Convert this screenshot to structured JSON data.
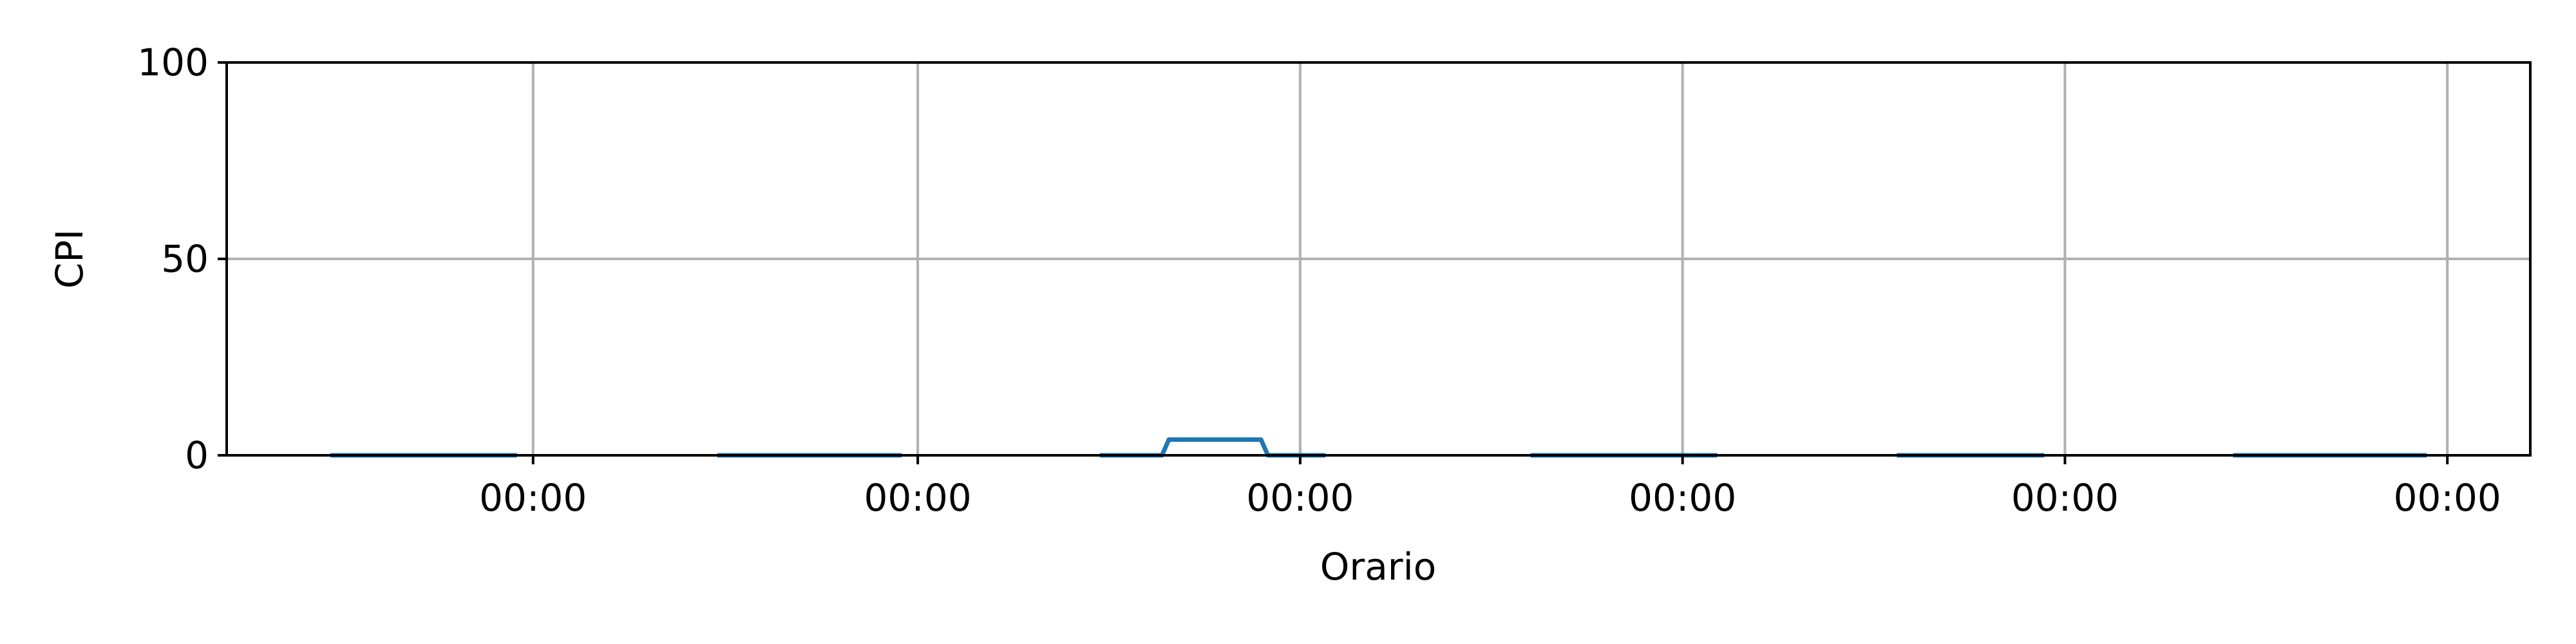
{
  "chart_data": {
    "type": "line",
    "title": "",
    "xlabel": "Orario",
    "ylabel": "CPI",
    "ylim": [
      0,
      100
    ],
    "xlim": [
      0,
      1
    ],
    "grid": true,
    "legend": "none",
    "x_ticks": [
      {
        "at": 0.133,
        "label": "00:00"
      },
      {
        "at": 0.3,
        "label": "00:00"
      },
      {
        "at": 0.466,
        "label": "00:00"
      },
      {
        "at": 0.632,
        "label": "00:00"
      },
      {
        "at": 0.798,
        "label": "00:00"
      },
      {
        "at": 0.964,
        "label": "00:00"
      }
    ],
    "y_ticks": [
      0,
      50,
      100
    ],
    "series": [
      {
        "color": "#1f77b4",
        "segments": [
          [
            [
              0.045,
              0
            ],
            [
              0.126,
              0
            ]
          ],
          [
            [
              0.213,
              0
            ],
            [
              0.293,
              0
            ]
          ],
          [
            [
              0.379,
              0
            ],
            [
              0.406,
              0
            ],
            [
              0.409,
              4
            ],
            [
              0.449,
              4
            ],
            [
              0.452,
              0
            ],
            [
              0.477,
              0
            ]
          ],
          [
            [
              0.566,
              0
            ],
            [
              0.647,
              0
            ]
          ],
          [
            [
              0.725,
              0
            ],
            [
              0.789,
              0
            ]
          ],
          [
            [
              0.871,
              0
            ],
            [
              0.955,
              0
            ]
          ]
        ]
      }
    ],
    "colors": {
      "grid": "#b0b0b0",
      "axes": "#000000",
      "line": "#1f77b4",
      "background": "#ffffff"
    }
  }
}
